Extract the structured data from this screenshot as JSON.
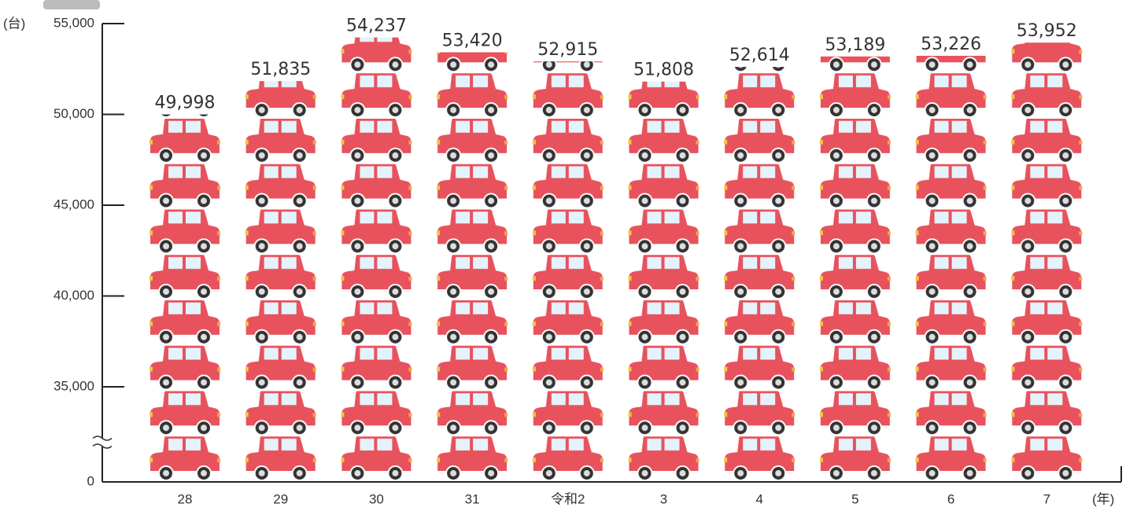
{
  "chart_data": {
    "type": "pictograph",
    "y_unit": "(台)",
    "x_unit": "(年)",
    "categories": [
      "28",
      "29",
      "30",
      "31",
      "令和2",
      "3",
      "4",
      "5",
      "6",
      "7"
    ],
    "values": [
      49998,
      51835,
      54237,
      53420,
      52915,
      51808,
      52614,
      53189,
      53226,
      53952
    ],
    "value_labels": [
      "49,998",
      "51,835",
      "54,237",
      "53,420",
      "52,915",
      "51,808",
      "52,614",
      "53,189",
      "53,226",
      "53,952"
    ],
    "color": "#e8525d",
    "ylim": [
      0,
      55000
    ],
    "yticks": [
      0,
      {
        "value": 35000,
        "label": "35,000"
      },
      {
        "value": 40000,
        "label": "40,000"
      },
      {
        "value": 45000,
        "label": "45,000"
      },
      {
        "value": 50000,
        "label": "50,000"
      },
      {
        "value": 55000,
        "label": "55,000"
      }
    ],
    "axis_break": true
  }
}
